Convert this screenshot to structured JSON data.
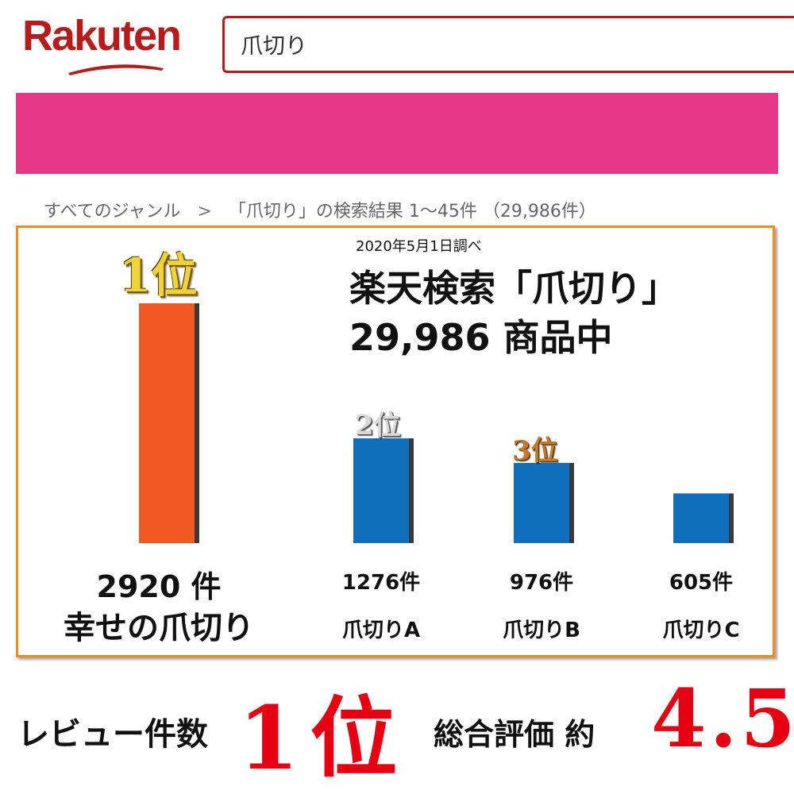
{
  "header": {
    "logo_text": "Rakuten",
    "search_value": "爪切り"
  },
  "breadcrumb": {
    "root": "すべてのジャンル",
    "separator": ">",
    "current": "「爪切り」の検索結果 1～45件 （29,986件）"
  },
  "colors": {
    "brand_red": "#b71c1c",
    "pink_band": "#e63887",
    "frame_orange": "#f08a1c",
    "top_bar": "#f05a22",
    "other_bars": "#0f6fbd",
    "accent_red": "#e60012"
  },
  "panel": {
    "survey_date": "2020年5月1日調べ",
    "headline_line1": "楽天検索「爪切り」",
    "headline_line2": "29,986 商品中",
    "badge_1": "1位",
    "badge_2": "2位",
    "badge_3": "3位",
    "top_count_label": "2920 件",
    "top_name": "幸せの爪切り"
  },
  "chart_data": {
    "type": "bar",
    "categories": [
      "幸せの爪切り",
      "爪切りA",
      "爪切りB",
      "爪切りC"
    ],
    "values": [
      2920,
      1276,
      976,
      605
    ],
    "value_labels": [
      "2920 件",
      "1276件",
      "976件",
      "605件"
    ],
    "unit": "件",
    "bar_colors": [
      "#f05a22",
      "#0f6fbd",
      "#0f6fbd",
      "#0f6fbd"
    ],
    "title": "",
    "xlabel": "",
    "ylabel": "",
    "ylim": [
      0,
      2920
    ],
    "grid": false
  },
  "footer": {
    "review_label": "レビュー件数",
    "review_rank": "1位",
    "overall_label": "総合評価 約",
    "overall_score": "4.5"
  }
}
